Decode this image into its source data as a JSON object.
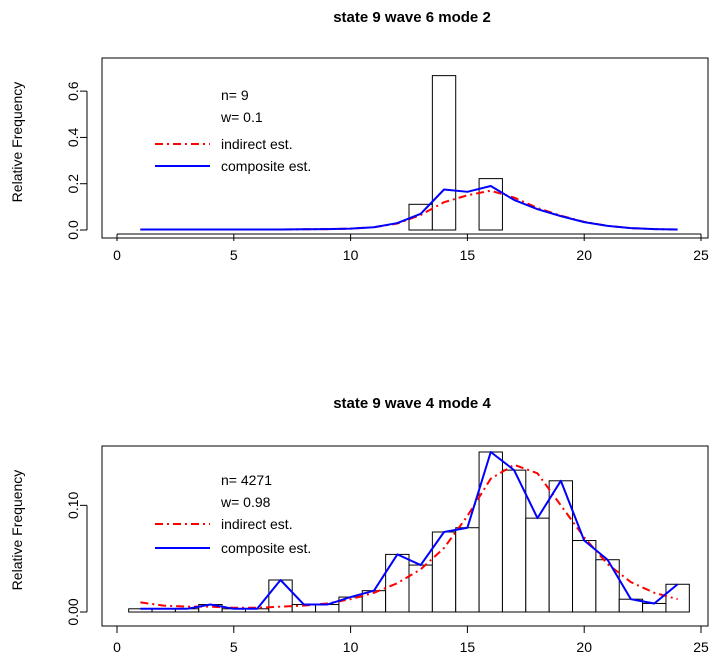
{
  "chart_data": [
    {
      "type": "bar",
      "title": "state 9 wave 6 mode 2",
      "ylabel": "Relative Frequency",
      "xlabel": "",
      "xlim": [
        0,
        25
      ],
      "ylim": [
        0,
        0.7
      ],
      "xticks": [
        0,
        5,
        10,
        15,
        20,
        25
      ],
      "yticks": [
        0.0,
        0.2,
        0.4,
        0.6
      ],
      "ytick_labels": [
        "0.0",
        "0.2",
        "0.4",
        "0.6"
      ],
      "grid": false,
      "legend_position": "top-left",
      "annotations": [
        "n= 9",
        "w= 0.1"
      ],
      "bars": {
        "x_start": [
          12.5,
          13.5,
          15.5
        ],
        "x_end": [
          13.5,
          14.5,
          16.5
        ],
        "values": [
          0.111,
          0.667,
          0.222
        ]
      },
      "series": [
        {
          "name": "indirect est.",
          "color": "#ff0000",
          "dash": "dotdash",
          "x": [
            1,
            2,
            3,
            4,
            5,
            6,
            7,
            8,
            9,
            10,
            11,
            12,
            13,
            14,
            15,
            16,
            17,
            18,
            19,
            20,
            21,
            22,
            23,
            24
          ],
          "values": [
            0.002,
            0.002,
            0.002,
            0.002,
            0.002,
            0.002,
            0.002,
            0.003,
            0.004,
            0.006,
            0.012,
            0.028,
            0.065,
            0.12,
            0.15,
            0.17,
            0.14,
            0.095,
            0.062,
            0.035,
            0.018,
            0.008,
            0.004,
            0.002
          ]
        },
        {
          "name": "composite est.",
          "color": "#0000ff",
          "dash": "solid",
          "x": [
            1,
            2,
            3,
            4,
            5,
            6,
            7,
            8,
            9,
            10,
            11,
            12,
            13,
            14,
            15,
            16,
            17,
            18,
            19,
            20,
            21,
            22,
            23,
            24
          ],
          "values": [
            0.002,
            0.002,
            0.002,
            0.002,
            0.002,
            0.002,
            0.002,
            0.003,
            0.004,
            0.006,
            0.012,
            0.03,
            0.07,
            0.175,
            0.165,
            0.19,
            0.13,
            0.09,
            0.06,
            0.034,
            0.018,
            0.008,
            0.004,
            0.002
          ]
        }
      ]
    },
    {
      "type": "bar",
      "title": "state 9 wave 4 mode 4",
      "ylabel": "Relative Frequency",
      "xlabel": "",
      "xlim": [
        0,
        25
      ],
      "ylim": [
        0,
        0.15
      ],
      "xticks": [
        0,
        5,
        10,
        15,
        20,
        25
      ],
      "yticks": [
        0.0,
        0.1
      ],
      "ytick_labels": [
        "0.00",
        "0.10"
      ],
      "grid": false,
      "legend_position": "top-left",
      "annotations": [
        "n= 4271",
        "w= 0.98"
      ],
      "bars": {
        "x_start": [
          0.5,
          1.5,
          2.5,
          3.5,
          4.5,
          5.5,
          6.5,
          7.5,
          8.5,
          9.5,
          10.5,
          11.5,
          12.5,
          13.5,
          14.5,
          15.5,
          16.5,
          17.5,
          18.5,
          19.5,
          20.5,
          21.5,
          22.5,
          23.5
        ],
        "x_end": [
          1.5,
          2.5,
          3.5,
          4.5,
          5.5,
          6.5,
          7.5,
          8.5,
          9.5,
          10.5,
          11.5,
          12.5,
          13.5,
          14.5,
          15.5,
          16.5,
          17.5,
          18.5,
          19.5,
          20.5,
          21.5,
          22.5,
          23.5,
          24.5
        ],
        "values": [
          0.003,
          0.003,
          0.003,
          0.007,
          0.003,
          0.003,
          0.03,
          0.007,
          0.007,
          0.014,
          0.02,
          0.054,
          0.044,
          0.075,
          0.079,
          0.15,
          0.133,
          0.088,
          0.123,
          0.067,
          0.049,
          0.012,
          0.008,
          0.026
        ]
      },
      "series": [
        {
          "name": "indirect est.",
          "color": "#ff0000",
          "dash": "dotdash",
          "x": [
            1,
            2,
            3,
            4,
            5,
            6,
            7,
            8,
            9,
            10,
            11,
            12,
            13,
            14,
            15,
            16,
            17,
            18,
            19,
            20,
            21,
            22,
            23,
            24
          ],
          "values": [
            0.009,
            0.006,
            0.005,
            0.005,
            0.004,
            0.004,
            0.005,
            0.006,
            0.008,
            0.012,
            0.018,
            0.027,
            0.04,
            0.06,
            0.09,
            0.125,
            0.138,
            0.13,
            0.1,
            0.07,
            0.045,
            0.028,
            0.018,
            0.012
          ]
        },
        {
          "name": "composite est.",
          "color": "#0000ff",
          "dash": "solid",
          "x": [
            1,
            2,
            3,
            4,
            5,
            6,
            7,
            8,
            9,
            10,
            11,
            12,
            13,
            14,
            15,
            16,
            17,
            18,
            19,
            20,
            21,
            22,
            23,
            24
          ],
          "values": [
            0.003,
            0.003,
            0.003,
            0.007,
            0.003,
            0.003,
            0.03,
            0.007,
            0.007,
            0.014,
            0.02,
            0.054,
            0.044,
            0.075,
            0.079,
            0.15,
            0.133,
            0.088,
            0.123,
            0.067,
            0.049,
            0.012,
            0.008,
            0.026
          ]
        }
      ]
    }
  ]
}
